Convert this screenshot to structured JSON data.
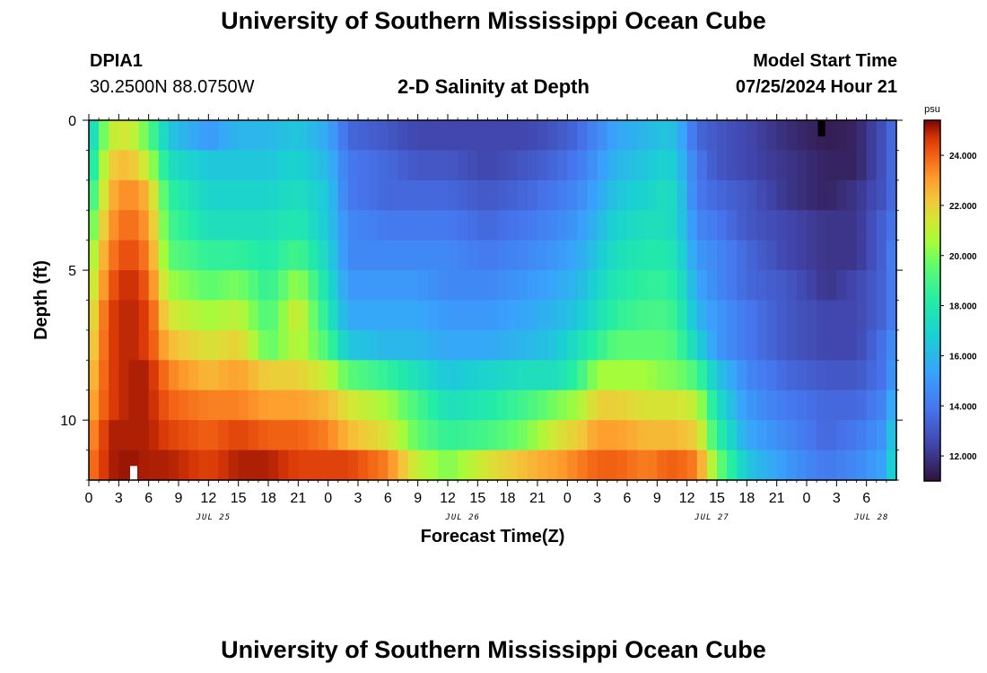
{
  "header": {
    "title": "University of Southern Mississippi Ocean Cube",
    "station_id": "DPIA1",
    "coords": "30.2500N  88.0750W",
    "subtitle": "2-D Salinity at Depth",
    "start_label": "Model Start Time",
    "start_time": "07/25/2024 Hour 21"
  },
  "footer": {
    "title": "University of Southern Mississippi Ocean Cube"
  },
  "chart_data": {
    "type": "heatmap",
    "title": "2-D Salinity at Depth",
    "xlabel": "Forecast Time(Z)",
    "ylabel": "Depth (ft)",
    "x_hours": [
      0,
      81
    ],
    "x_tick_labels": [
      "0",
      "3",
      "6",
      "9",
      "12",
      "15",
      "18",
      "21",
      "0",
      "3",
      "6",
      "9",
      "12",
      "15",
      "18",
      "21",
      "0",
      "3",
      "6",
      "9",
      "12",
      "15",
      "18",
      "21",
      "0",
      "3",
      "6"
    ],
    "date_labels": [
      {
        "text": "JUL 25",
        "hour": 12.5
      },
      {
        "text": "JUL 26",
        "hour": 37.5
      },
      {
        "text": "JUL 27",
        "hour": 62.5
      },
      {
        "text": "JUL 28",
        "hour": 78.5
      }
    ],
    "ylim": [
      0,
      12
    ],
    "y_tick_labels": [
      "0",
      "5",
      "10"
    ],
    "y_tick_values": [
      0,
      5,
      10
    ],
    "colorbar": {
      "unit": "psu",
      "min": 11.0,
      "max": 25.4,
      "tick_values": [
        12,
        14,
        16,
        18,
        20,
        22,
        24
      ],
      "tick_labels": [
        "12.000",
        "14.000",
        "16.000",
        "18.000",
        "20.000",
        "22.000",
        "24.000"
      ]
    },
    "depth_levels_ft": [
      0.5,
      1.5,
      2.5,
      3.5,
      4.5,
      5.5,
      6.5,
      7.5,
      8.5,
      9.5,
      10.5,
      11.5
    ],
    "profiles": [
      {
        "hour": 0,
        "values": [
          16.5,
          17.0,
          18.0,
          19.0,
          20.0,
          20.5,
          21.0,
          21.5,
          22.0,
          22.5,
          23.0,
          23.5
        ]
      },
      {
        "hour": 2,
        "values": [
          21.0,
          22.0,
          22.5,
          23.0,
          23.5,
          24.0,
          24.5,
          24.5,
          24.5,
          24.5,
          25.0,
          25.0
        ]
      },
      {
        "hour": 4,
        "values": [
          21.5,
          22.5,
          23.5,
          24.0,
          24.5,
          25.0,
          25.0,
          25.0,
          25.0,
          25.0,
          25.0,
          25.2
        ]
      },
      {
        "hour": 6,
        "values": [
          19.5,
          21.0,
          22.5,
          23.0,
          23.5,
          24.0,
          24.5,
          24.5,
          25.0,
          25.0,
          25.0,
          25.0
        ]
      },
      {
        "hour": 8,
        "values": [
          16.5,
          17.5,
          18.5,
          19.0,
          19.5,
          20.5,
          21.5,
          22.5,
          23.5,
          24.0,
          24.5,
          25.0
        ]
      },
      {
        "hour": 12,
        "values": [
          15.0,
          16.5,
          17.0,
          17.5,
          18.5,
          19.5,
          20.5,
          21.5,
          22.5,
          23.5,
          24.0,
          24.5
        ]
      },
      {
        "hour": 15,
        "values": [
          16.0,
          16.5,
          17.0,
          17.5,
          18.5,
          20.0,
          21.0,
          22.0,
          23.0,
          23.5,
          24.5,
          25.0
        ]
      },
      {
        "hour": 18,
        "values": [
          16.0,
          16.5,
          17.0,
          17.5,
          18.0,
          18.5,
          19.0,
          19.5,
          22.0,
          23.0,
          24.0,
          25.0
        ]
      },
      {
        "hour": 21,
        "values": [
          16.5,
          17.0,
          17.5,
          18.0,
          19.0,
          20.5,
          21.5,
          21.0,
          22.0,
          23.0,
          24.0,
          24.5
        ]
      },
      {
        "hour": 24,
        "values": [
          15.5,
          16.0,
          16.5,
          16.5,
          17.0,
          17.5,
          18.0,
          19.0,
          21.0,
          22.5,
          23.5,
          24.5
        ]
      },
      {
        "hour": 26,
        "values": [
          13.5,
          14.0,
          14.0,
          14.5,
          14.5,
          15.0,
          15.5,
          16.5,
          19.5,
          21.5,
          22.5,
          24.5
        ]
      },
      {
        "hour": 30,
        "values": [
          13.0,
          13.5,
          13.5,
          14.0,
          14.5,
          15.0,
          15.5,
          16.0,
          18.5,
          20.5,
          21.5,
          23.5
        ]
      },
      {
        "hour": 33,
        "values": [
          12.5,
          13.0,
          13.5,
          14.0,
          14.5,
          15.0,
          15.5,
          16.0,
          17.5,
          19.0,
          19.5,
          21.0
        ]
      },
      {
        "hour": 36,
        "values": [
          12.5,
          13.0,
          13.5,
          14.0,
          14.5,
          14.5,
          15.0,
          15.5,
          16.5,
          17.5,
          18.5,
          20.0
        ]
      },
      {
        "hour": 40,
        "values": [
          12.5,
          12.5,
          13.0,
          13.5,
          14.0,
          14.5,
          15.0,
          15.5,
          17.0,
          18.0,
          19.0,
          21.5
        ]
      },
      {
        "hour": 44,
        "values": [
          12.5,
          13.0,
          13.5,
          14.0,
          14.5,
          15.0,
          15.5,
          16.0,
          17.5,
          19.0,
          20.0,
          22.5
        ]
      },
      {
        "hour": 47,
        "values": [
          13.0,
          13.5,
          14.0,
          14.5,
          15.0,
          15.5,
          16.0,
          16.5,
          17.5,
          20.0,
          21.5,
          23.0
        ]
      },
      {
        "hour": 49,
        "values": [
          13.5,
          14.0,
          14.5,
          15.0,
          15.5,
          16.0,
          16.5,
          17.5,
          18.5,
          20.5,
          22.0,
          23.5
        ]
      },
      {
        "hour": 51,
        "values": [
          14.5,
          15.0,
          15.5,
          16.0,
          16.5,
          17.0,
          17.5,
          18.5,
          20.5,
          22.0,
          23.0,
          24.0
        ]
      },
      {
        "hour": 53,
        "values": [
          15.5,
          16.0,
          16.5,
          17.0,
          17.5,
          18.0,
          18.5,
          19.5,
          20.5,
          22.0,
          23.0,
          24.0
        ]
      },
      {
        "hour": 56,
        "values": [
          16.0,
          16.5,
          17.0,
          17.5,
          18.0,
          18.5,
          19.0,
          19.5,
          20.5,
          21.5,
          22.5,
          23.5
        ]
      },
      {
        "hour": 58,
        "values": [
          16.5,
          17.0,
          17.5,
          17.5,
          18.0,
          18.5,
          19.0,
          19.5,
          20.0,
          21.5,
          22.5,
          24.0
        ]
      },
      {
        "hour": 59,
        "values": [
          16.0,
          16.5,
          17.0,
          17.0,
          17.5,
          18.0,
          18.5,
          19.0,
          20.0,
          21.5,
          22.5,
          24.0
        ]
      },
      {
        "hour": 61,
        "values": [
          13.5,
          14.0,
          14.0,
          14.5,
          15.0,
          15.5,
          16.0,
          17.0,
          19.0,
          21.0,
          22.0,
          23.5
        ]
      },
      {
        "hour": 63,
        "values": [
          13.0,
          13.0,
          13.5,
          14.0,
          14.5,
          14.5,
          15.0,
          15.0,
          16.5,
          17.5,
          18.5,
          20.0
        ]
      },
      {
        "hour": 66,
        "values": [
          12.5,
          12.5,
          13.0,
          13.0,
          13.5,
          13.5,
          14.0,
          14.0,
          14.5,
          15.0,
          15.5,
          16.5
        ]
      },
      {
        "hour": 70,
        "values": [
          11.8,
          12.0,
          12.0,
          12.5,
          12.5,
          13.0,
          13.0,
          13.0,
          13.5,
          14.0,
          14.5,
          15.0
        ]
      },
      {
        "hour": 74,
        "values": [
          11.3,
          11.5,
          11.5,
          12.0,
          12.0,
          12.0,
          12.5,
          12.5,
          13.0,
          13.5,
          13.5,
          14.0
        ]
      },
      {
        "hour": 77,
        "values": [
          11.5,
          11.5,
          12.0,
          12.0,
          12.0,
          12.5,
          12.5,
          12.5,
          13.0,
          13.5,
          14.0,
          14.5
        ]
      },
      {
        "hour": 80,
        "values": [
          13.0,
          13.0,
          13.0,
          13.5,
          13.5,
          13.5,
          13.5,
          14.0,
          14.0,
          14.5,
          15.0,
          15.5
        ]
      },
      {
        "hour": 81,
        "values": [
          14.0,
          14.0,
          14.0,
          14.0,
          14.5,
          14.5,
          14.5,
          15.0,
          15.5,
          16.5,
          17.5,
          18.0
        ]
      }
    ],
    "annotations": [
      {
        "type": "min-marker",
        "color": "#000000",
        "hour": 73.5,
        "depth_ft": 0.3
      },
      {
        "type": "max-marker",
        "color": "#ffffff",
        "hour": 4.5,
        "depth_ft": 11.8
      }
    ]
  }
}
